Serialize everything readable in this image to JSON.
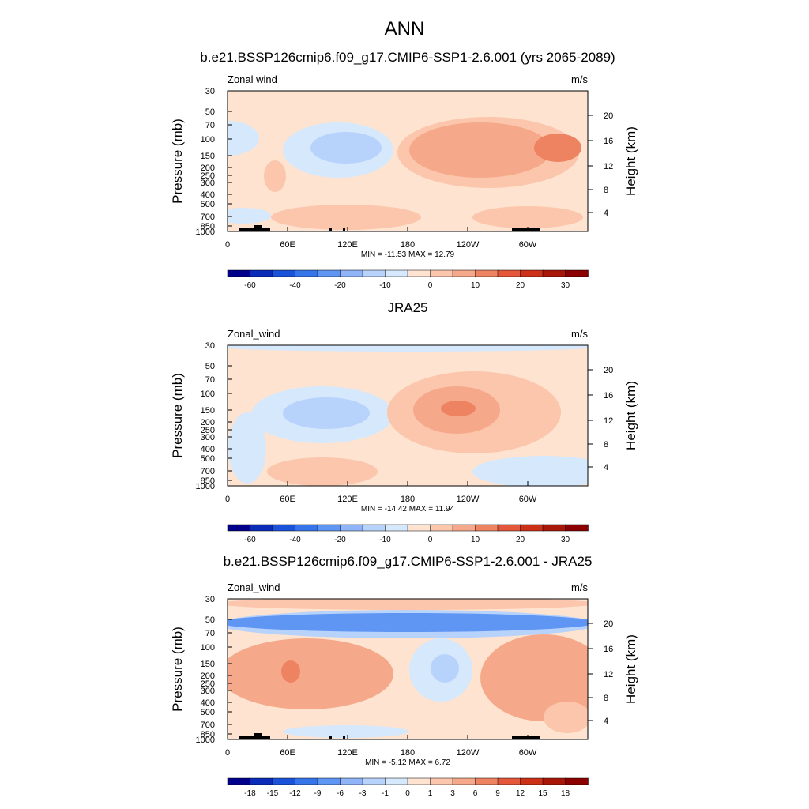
{
  "main_title": "ANN",
  "axis": {
    "ylabel_left": "Pressure (mb)",
    "ylabel_right": "Height (km)",
    "pressure_ticks": [
      "30",
      "50",
      "70",
      "100",
      "150",
      "200",
      "250",
      "300",
      "400",
      "500",
      "700",
      "850",
      "1000"
    ],
    "height_ticks": [
      "20",
      "16",
      "12",
      "8",
      "4"
    ],
    "x_ticks": [
      "0",
      "60E",
      "120E",
      "180",
      "120W",
      "60W"
    ]
  },
  "colors": {
    "deep_blue": "#00008b",
    "light_blue": "#c6e2fb",
    "peach": "#fde3d0",
    "salmon": "#f5a98a",
    "deep_red": "#8b0000",
    "land": "#000000"
  },
  "chart_data": [
    {
      "type": "heatmap",
      "title": "b.e21.BSSP126cmip6.f09_g17.CMIP6-SSP1-2.6.001 (yrs 2065-2089)",
      "variable": "Zonal wind",
      "units": "m/s",
      "min_max_label": "MIN = -11.53  MAX =  12.79",
      "colorbar_labels": [
        "-60",
        "-40",
        "-20",
        "-10",
        "0",
        "10",
        "20",
        "30"
      ],
      "zlim": [
        -11.53,
        12.79
      ]
    },
    {
      "type": "heatmap",
      "title": "JRA25",
      "variable": "Zonal_wind",
      "units": "m/s",
      "min_max_label": "MIN = -14.42  MAX =  11.94",
      "colorbar_labels": [
        "-60",
        "-40",
        "-20",
        "-10",
        "0",
        "10",
        "20",
        "30"
      ],
      "zlim": [
        -14.42,
        11.94
      ]
    },
    {
      "type": "heatmap",
      "title": "b.e21.BSSP126cmip6.f09_g17.CMIP6-SSP1-2.6.001 - JRA25",
      "variable": "Zonal_wind",
      "units": "m/s",
      "min_max_label": "MIN =  -5.12  MAX =   6.72",
      "colorbar_labels": [
        "-18",
        "-15",
        "-12",
        "-9",
        "-6",
        "-3",
        "-1",
        "0",
        "1",
        "3",
        "6",
        "9",
        "12",
        "15",
        "18"
      ],
      "zlim": [
        -5.12,
        6.72
      ]
    }
  ]
}
